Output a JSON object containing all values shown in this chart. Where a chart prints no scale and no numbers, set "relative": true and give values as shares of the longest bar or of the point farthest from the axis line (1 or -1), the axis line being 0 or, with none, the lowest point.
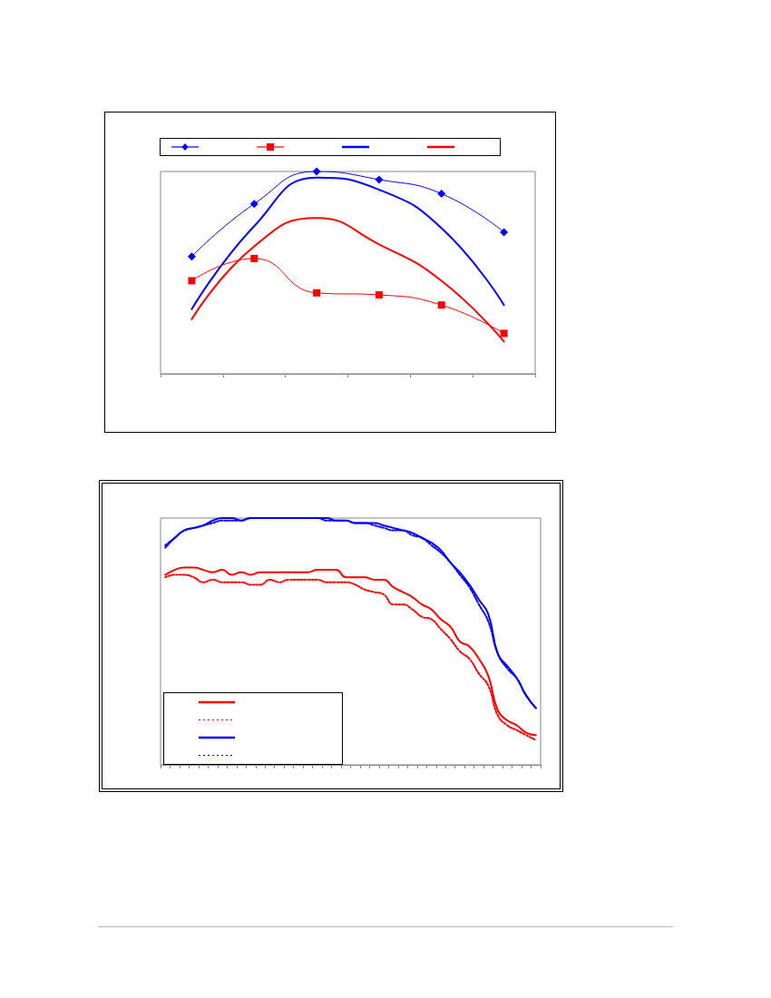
{
  "chart_data": [
    {
      "type": "line",
      "relative": true,
      "grid": false,
      "categories": [
        null,
        null,
        null,
        null,
        null,
        null
      ],
      "series": [
        {
          "color": "#0000ff",
          "marker": "diamond",
          "line_style": "solid",
          "values": [
            0.58,
            0.84,
            1,
            0.96,
            0.89,
            0.7
          ]
        },
        {
          "color": "#ff0000",
          "marker": "square",
          "line_style": "solid",
          "values": [
            0.46,
            0.57,
            0.4,
            0.39,
            0.34,
            0.2
          ]
        },
        {
          "color": "#0000ff",
          "marker": "none",
          "line_style": "solid",
          "values": [
            0.32,
            0.73,
            0.97,
            0.91,
            0.72,
            0.34
          ]
        },
        {
          "color": "#ff0000",
          "marker": "none",
          "line_style": "solid",
          "values": [
            0.27,
            0.63,
            0.77,
            0.64,
            0.46,
            0.16
          ]
        }
      ]
    },
    {
      "type": "line",
      "relative": true,
      "grid": false,
      "marker": "none",
      "categories": [
        null,
        null,
        null,
        null,
        null,
        null,
        null,
        null,
        null,
        null,
        null,
        null,
        null,
        null,
        null,
        null,
        null,
        null,
        null,
        null,
        null,
        null,
        null,
        null,
        null,
        null,
        null,
        null,
        null,
        null,
        null,
        null,
        null,
        null,
        null,
        null,
        null,
        null,
        null,
        null
      ],
      "series": [
        {
          "color": "#ff0000",
          "line_style": "solid",
          "values": [
            0.77,
            0.79,
            0.8,
            0.8,
            0.79,
            0.78,
            0.79,
            0.77,
            0.78,
            0.77,
            0.78,
            0.78,
            0.78,
            0.78,
            0.78,
            0.78,
            0.79,
            0.79,
            0.79,
            0.76,
            0.76,
            0.76,
            0.75,
            0.75,
            0.72,
            0.7,
            0.68,
            0.65,
            0.63,
            0.59,
            0.56,
            0.5,
            0.48,
            0.43,
            0.36,
            0.22,
            0.18,
            0.16,
            0.13,
            0.12
          ]
        },
        {
          "color": "#ff0000",
          "line_style": "dotted",
          "values": [
            0.76,
            0.77,
            0.77,
            0.76,
            0.74,
            0.75,
            0.74,
            0.74,
            0.74,
            0.73,
            0.73,
            0.75,
            0.74,
            0.75,
            0.75,
            0.75,
            0.75,
            0.74,
            0.74,
            0.74,
            0.73,
            0.71,
            0.7,
            0.69,
            0.65,
            0.65,
            0.63,
            0.6,
            0.59,
            0.55,
            0.51,
            0.46,
            0.43,
            0.37,
            0.32,
            0.2,
            0.16,
            0.14,
            0.12,
            0.1
          ]
        },
        {
          "color": "#0000ff",
          "line_style": "solid",
          "values": [
            0.88,
            0.92,
            0.95,
            0.96,
            0.97,
            0.99,
            1.0,
            1.0,
            0.99,
            1.0,
            1.0,
            1.0,
            1.0,
            1.0,
            1.0,
            1.0,
            1.0,
            1.0,
            0.99,
            0.99,
            0.98,
            0.98,
            0.98,
            0.97,
            0.96,
            0.95,
            0.94,
            0.92,
            0.9,
            0.87,
            0.82,
            0.78,
            0.73,
            0.67,
            0.61,
            0.45,
            0.4,
            0.35,
            0.28,
            0.23
          ]
        },
        {
          "color": "#0000ff",
          "line_style": "dotted",
          "values": [
            0.89,
            0.92,
            0.95,
            0.96,
            0.97,
            0.98,
            0.99,
            0.99,
            0.99,
            1.0,
            1.0,
            1.0,
            1.0,
            1.0,
            1.0,
            1.0,
            1.0,
            0.99,
            0.99,
            0.99,
            0.98,
            0.98,
            0.97,
            0.96,
            0.95,
            0.95,
            0.93,
            0.92,
            0.89,
            0.86,
            0.82,
            0.77,
            0.72,
            0.65,
            0.58,
            0.45,
            0.39,
            0.35,
            0.28,
            0.23
          ]
        }
      ]
    }
  ]
}
